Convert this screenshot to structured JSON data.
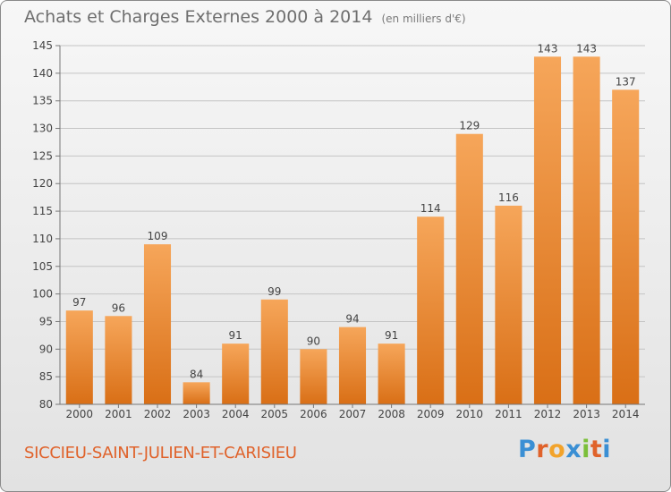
{
  "header": {
    "title": "Achats et Charges Externes 2000 à 2014",
    "subtitle": "(en milliers d'€)"
  },
  "footer": {
    "commune": "SICCIEU-SAINT-JULIEN-ET-CARISIEU",
    "logo_text": "Proxiti",
    "logo_colors": [
      "#3a8fd4",
      "#e0622a",
      "#f2a32b",
      "#3a8fd4",
      "#7bbf3a",
      "#e0622a",
      "#3a8fd4"
    ]
  },
  "chart_data": {
    "type": "bar",
    "title": "Achats et Charges Externes 2000 à 2014",
    "subtitle": "(en milliers d'€)",
    "categories": [
      "2000",
      "2001",
      "2002",
      "2003",
      "2004",
      "2005",
      "2006",
      "2007",
      "2008",
      "2009",
      "2010",
      "2011",
      "2012",
      "2013",
      "2014"
    ],
    "values": [
      97,
      96,
      109,
      84,
      91,
      99,
      90,
      94,
      91,
      114,
      129,
      116,
      143,
      143,
      137
    ],
    "ylim": [
      80,
      145
    ],
    "yticks": [
      80,
      85,
      90,
      95,
      100,
      105,
      110,
      115,
      120,
      125,
      130,
      135,
      140,
      145
    ],
    "xlabel": "",
    "ylabel": "",
    "grid": true,
    "bar_color_top": "#f6a65a",
    "bar_color_bottom": "#d96f16",
    "show_data_labels": true
  }
}
